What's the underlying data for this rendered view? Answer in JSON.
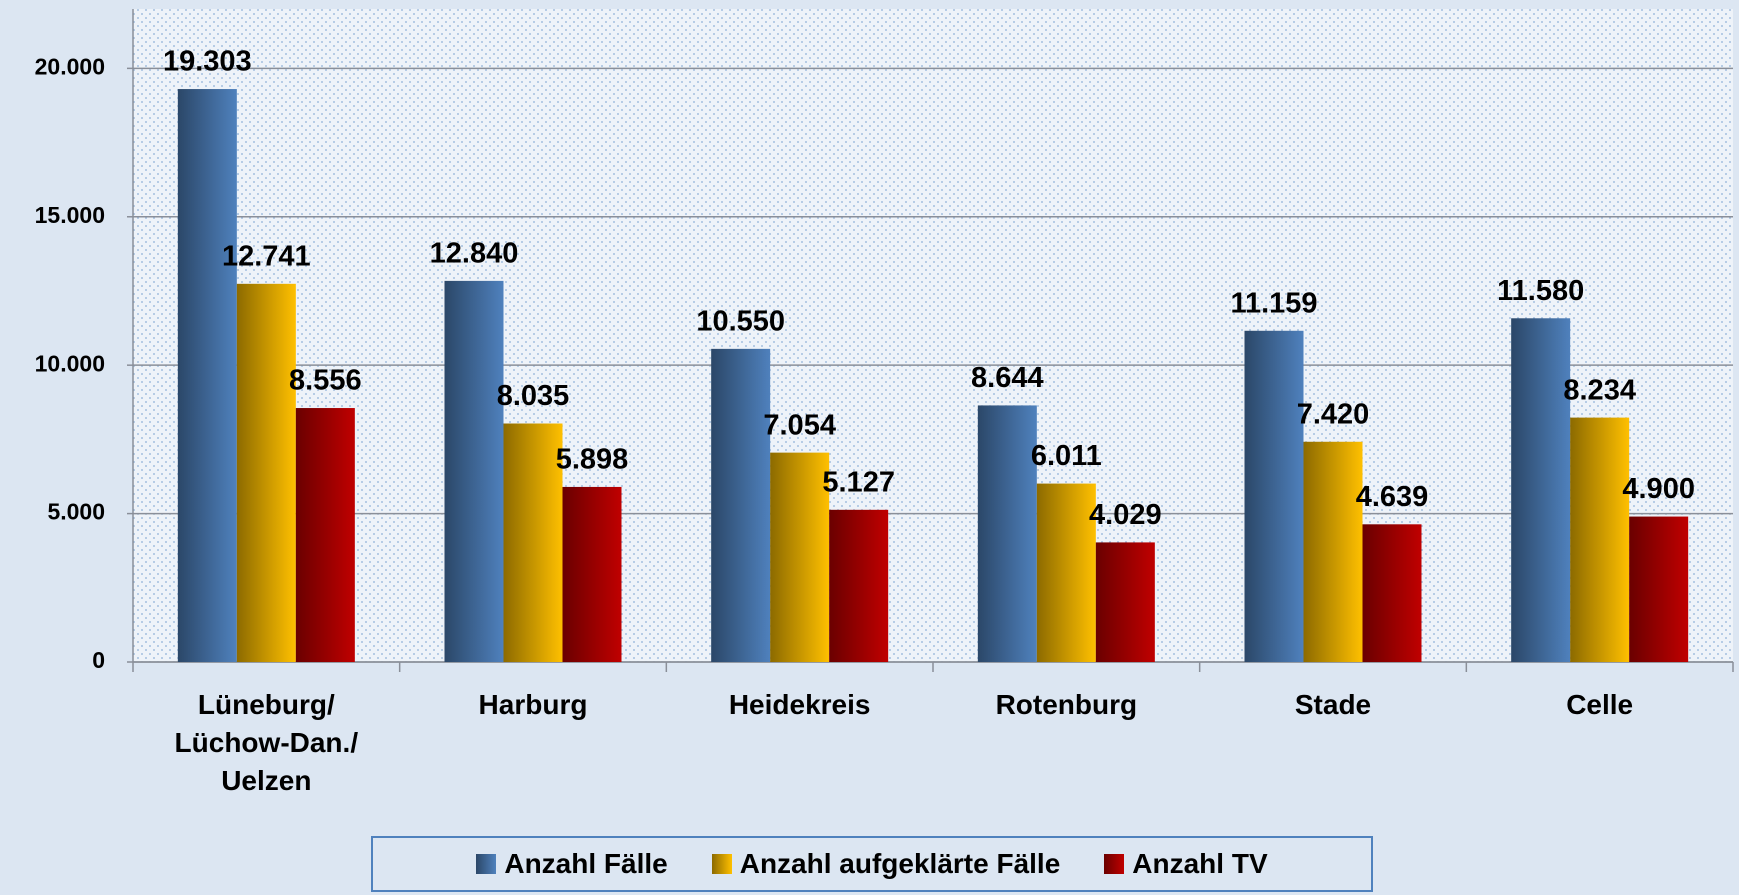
{
  "chart_data": {
    "type": "bar",
    "categories": [
      "Lüneburg/ Lüchow-Dan./ Uelzen",
      "Harburg",
      "Heidekreis",
      "Rotenburg",
      "Stade",
      "Celle"
    ],
    "series": [
      {
        "name": "Anzahl Fälle",
        "color": "#4f81bd",
        "values": [
          19303,
          12840,
          10550,
          8644,
          11159,
          11580
        ],
        "value_labels": [
          "19.303",
          "12.840",
          "10.550",
          "8.644",
          "11.159",
          "11.580"
        ]
      },
      {
        "name": "Anzahl aufgeklärte Fälle",
        "color": "#ffc000",
        "values": [
          12741,
          8035,
          7054,
          6011,
          7420,
          8234
        ],
        "value_labels": [
          "12.741",
          "8.035",
          "7.054",
          "6.011",
          "7.420",
          "8.234"
        ]
      },
      {
        "name": "Anzahl TV",
        "color": "#c00000",
        "values": [
          8556,
          5898,
          5127,
          4029,
          4639,
          4900
        ],
        "value_labels": [
          "8.556",
          "5.898",
          "5.127",
          "4.029",
          "4.639",
          "4.900"
        ]
      }
    ],
    "ylim": [
      0,
      22000
    ],
    "yticks": [
      0,
      {
        "value": 5000,
        "label": "5.000"
      },
      {
        "value": 10000,
        "label": "10.000"
      },
      {
        "value": 15000,
        "label": "15.000"
      },
      {
        "value": 20000,
        "label": "20.000"
      }
    ],
    "grid": true,
    "legend": "bottom"
  }
}
